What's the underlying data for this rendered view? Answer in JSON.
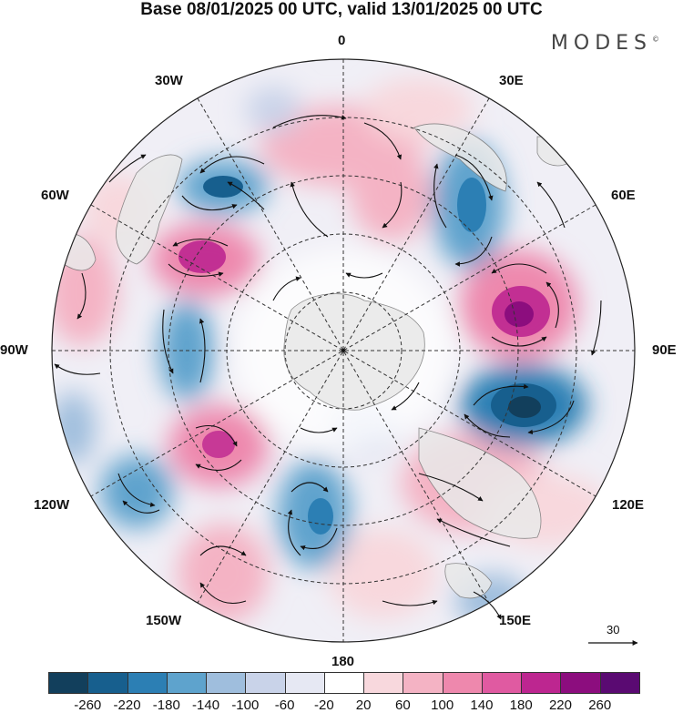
{
  "header": {
    "title": "Base 08/01/2025 00 UTC, valid 13/01/2025 00 UTC",
    "brand": "MODES",
    "brand_mark": "©"
  },
  "map": {
    "projection": "south polar stereographic",
    "longitude_labels": [
      "0",
      "30E",
      "60E",
      "90E",
      "120E",
      "150E",
      "180",
      "150W",
      "120W",
      "90W",
      "60W",
      "30W"
    ],
    "reference_vector": "30",
    "colors": {
      "land": "#e9e9e9",
      "negative_strong": "#12435e",
      "positive_strong": "#5a0a72"
    }
  },
  "legend": {
    "tick_labels": [
      "-260",
      "-220",
      "-180",
      "-140",
      "-100",
      "-60",
      "-20",
      "20",
      "60",
      "100",
      "140",
      "180",
      "220",
      "260"
    ],
    "colors": [
      "#123f5c",
      "#175f8e",
      "#2c7fb4",
      "#5ea3cd",
      "#9fbedd",
      "#c9d3e9",
      "#e6e8f3",
      "#ffffff",
      "#f8d8dd",
      "#f4b3c4",
      "#ee88ad",
      "#e05aa1",
      "#bd2690",
      "#8c0d7e",
      "#5a0a72"
    ]
  }
}
